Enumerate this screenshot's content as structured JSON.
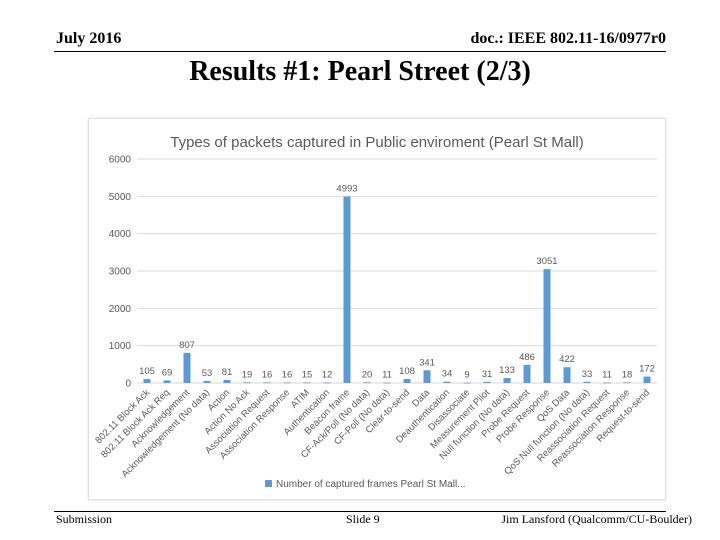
{
  "header": {
    "date": "July 2016",
    "doc": "doc.: IEEE 802.11-16/0977r0"
  },
  "slide": {
    "title": "Results #1: Pearl Street (2/3)"
  },
  "footer": {
    "left": "Submission",
    "center": "Slide 9",
    "right": "Jim Lansford (Qualcomm/CU-Boulder)"
  },
  "colors": {
    "bar": "#5b9bd5",
    "grid": "#d9d9d9",
    "axis_text": "#595959"
  },
  "chart_data": {
    "type": "bar",
    "title": "Types of packets captured in Public enviroment (Pearl St Mall)",
    "xlabel": "",
    "ylabel": "",
    "ylim": [
      0,
      6000
    ],
    "yticks": [
      0,
      1000,
      2000,
      3000,
      4000,
      5000,
      6000
    ],
    "grid": true,
    "legend_position": "bottom",
    "categories": [
      "802.11 Block Ack",
      "802.11 Block Ack Req",
      "Acknowledgement",
      "Acknowledgement (No data)",
      "Action",
      "Action No Ack",
      "Association Request",
      "Association Response",
      "ATIM",
      "Authentication",
      "Beacon frame",
      "CF-Ack/Poll (No data)",
      "CF-Poll (No data)",
      "Clear-to-send",
      "Data",
      "Deauthentication",
      "Disassociate",
      "Measurement Pilot",
      "Null function (No data)",
      "Probe Request",
      "Probe Response",
      "QoS Data",
      "QoS Null function (No data)",
      "Reassociation Request",
      "Reassociation Response",
      "Request-to-send"
    ],
    "series": [
      {
        "name": "Number of captured frames Pearl St Mall...",
        "values": [
          105,
          69,
          807,
          53,
          81,
          19,
          16,
          16,
          15,
          12,
          4993,
          20,
          11,
          108,
          341,
          34,
          9,
          31,
          133,
          486,
          3051,
          422,
          33,
          11,
          18,
          172
        ]
      }
    ]
  }
}
